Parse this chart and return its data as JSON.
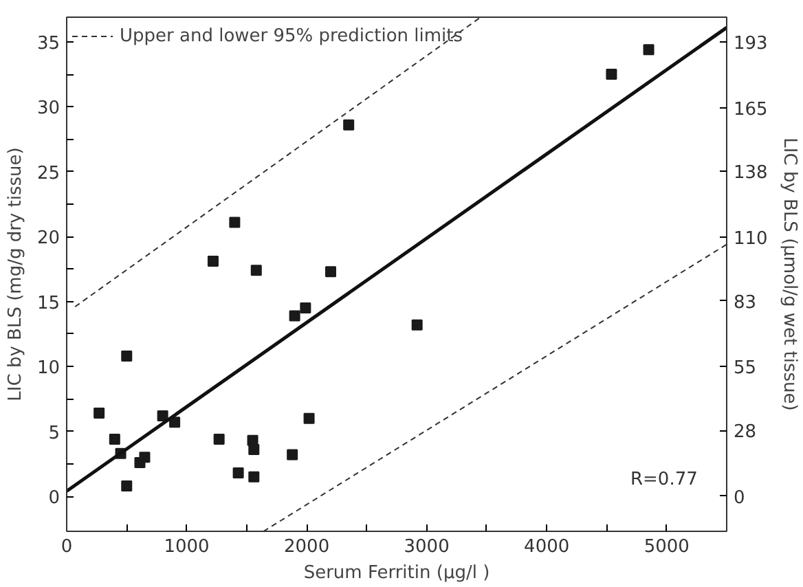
{
  "chart_data": {
    "type": "scatter",
    "xlabel": "Serum Ferritin (µg/l )",
    "ylabel": "LIC by BLS (mg/g dry tissue)",
    "y2label": "LIC by BLS (µmol/g wet tissue)",
    "series": [
      {
        "color": "#1a1a1a",
        "marker": "square",
        "x": [
          4850,
          4540,
          2350,
          1400,
          1220,
          1580,
          2200,
          1990,
          1900,
          2920,
          500,
          270,
          800,
          900,
          2020,
          400,
          1270,
          1550,
          1560,
          450,
          650,
          610,
          1880,
          1430,
          1560,
          500
        ],
        "values": [
          34.4,
          32.5,
          28.6,
          21.1,
          18.1,
          17.4,
          17.3,
          14.5,
          13.9,
          13.2,
          10.8,
          6.4,
          6.2,
          5.7,
          6.0,
          4.4,
          4.4,
          4.3,
          3.6,
          3.3,
          3.0,
          2.6,
          3.2,
          1.8,
          1.5,
          0.8
        ]
      },
      {
        "type": "line",
        "color": "#111111",
        "line_style": "solid",
        "x": [
          0,
          5500
        ],
        "values": [
          0.4,
          36.1
        ]
      },
      {
        "type": "line",
        "name": "Upper and lower 95% prediction limits",
        "color": "#333333",
        "line_style": "dashed",
        "x": [
          70,
          3450
        ],
        "values": [
          14.6,
          36.9
        ]
      },
      {
        "type": "line",
        "color": "#333333",
        "line_style": "dashed",
        "x": [
          1640,
          5500
        ],
        "values": [
          -2.7,
          19.4
        ]
      }
    ],
    "xlim": [
      0,
      5500
    ],
    "xticks": [
      0,
      {
        "value": 500,
        "label": null
      },
      1000,
      {
        "value": 1500,
        "label": null
      },
      2000,
      {
        "value": 2500,
        "label": null
      },
      3000,
      {
        "value": 3500,
        "label": null
      },
      4000,
      {
        "value": 4500,
        "label": null
      },
      5000
    ],
    "ylim": [
      -2.7,
      36.9
    ],
    "yticks": [
      0,
      {
        "value": 2.5,
        "label": null
      },
      5,
      {
        "value": 7.5,
        "label": null
      },
      10,
      {
        "value": 12.5,
        "label": null
      },
      15,
      {
        "value": 17.5,
        "label": null
      },
      20,
      {
        "value": 22.5,
        "label": null
      },
      25,
      {
        "value": 27.5,
        "label": null
      },
      30,
      {
        "value": 32.5,
        "label": null
      },
      35
    ],
    "y2lim": [
      -14.9,
      203.4
    ],
    "y2ticks": [
      0,
      28,
      55,
      83,
      110,
      138,
      165,
      193
    ],
    "annotations": [
      "R=0.77"
    ],
    "legend": "top left",
    "grid": false
  }
}
